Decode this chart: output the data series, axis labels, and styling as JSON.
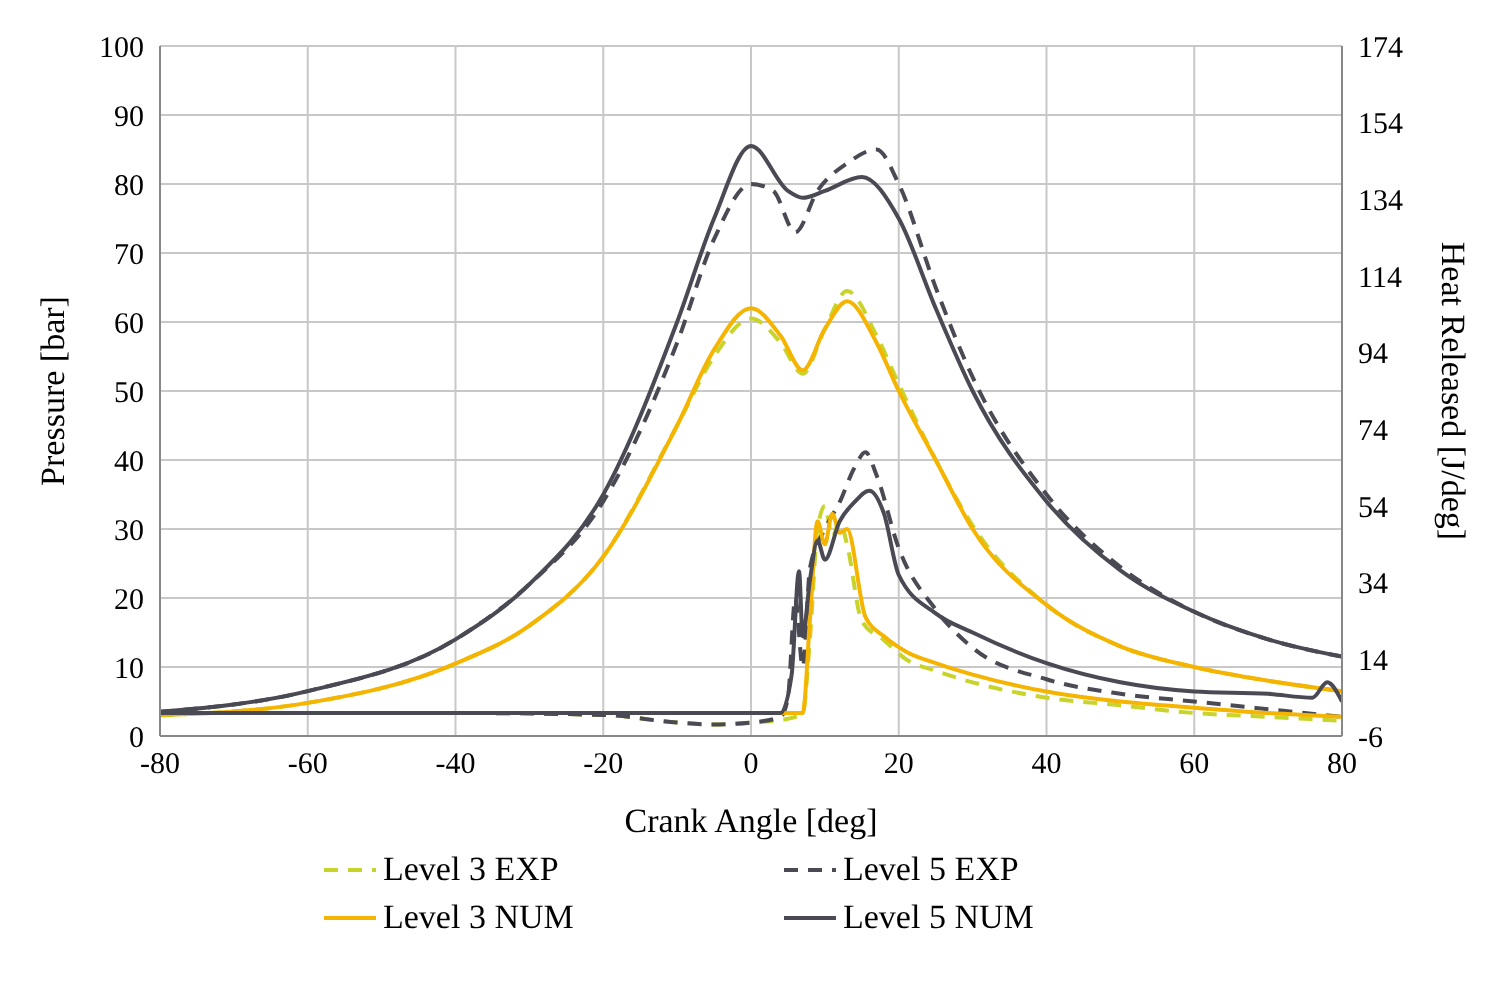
{
  "chart_data": {
    "type": "line",
    "xlabel": "Crank Angle [deg]",
    "ylabel": "Pressure [bar]",
    "y2label": "Heat Released [J/deg]",
    "xlim": [
      -80,
      80
    ],
    "xticks": [
      -80,
      -60,
      -40,
      -20,
      0,
      20,
      40,
      60,
      80
    ],
    "ylim": [
      0,
      100
    ],
    "yticks": [
      0,
      10,
      20,
      30,
      40,
      50,
      60,
      70,
      80,
      90,
      100
    ],
    "y2lim": [
      -6,
      174
    ],
    "y2ticks": [
      -6,
      14,
      34,
      54,
      74,
      94,
      114,
      134,
      154,
      174
    ],
    "grid": true,
    "legend": "bottom",
    "marker": "none",
    "series": [
      {
        "name": "Level 3 EXP",
        "color": "#c8d42a",
        "line_style": "dashed",
        "x": [
          -80,
          -60,
          -40,
          -30,
          -20,
          -10,
          -5,
          0,
          4,
          7,
          10,
          13,
          17,
          20,
          25,
          30,
          40,
          50,
          60,
          70,
          80
        ],
        "values": [
          3,
          4.8,
          10.5,
          16,
          26,
          45,
          55,
          60.5,
          57,
          52.5,
          59,
          64.5,
          58,
          51,
          40,
          30.5,
          19,
          13,
          10,
          8,
          6.5
        ]
      },
      {
        "name": "Level 5 EXP",
        "color": "#4a4a55",
        "line_style": "dashed",
        "x": [
          -80,
          -60,
          -40,
          -30,
          -20,
          -10,
          -5,
          0,
          3,
          6,
          9,
          13,
          17,
          20,
          25,
          30,
          40,
          50,
          60,
          70,
          80
        ],
        "values": [
          3.5,
          6.5,
          14,
          22,
          34,
          57,
          72,
          80,
          79,
          73,
          79,
          83,
          85,
          80,
          65,
          52,
          35,
          24.5,
          18,
          14,
          11.5
        ]
      },
      {
        "name": "Level 3 NUM",
        "color": "#f5b400",
        "line_style": "solid",
        "x": [
          -80,
          -60,
          -40,
          -30,
          -20,
          -10,
          -5,
          0,
          4,
          7,
          10,
          13,
          17,
          20,
          25,
          30,
          40,
          50,
          60,
          70,
          80
        ],
        "values": [
          3,
          4.8,
          10.5,
          16,
          26,
          45,
          56,
          62,
          58,
          53,
          59,
          63,
          57,
          50,
          40,
          30,
          19,
          13,
          10,
          8,
          6.5
        ]
      },
      {
        "name": "Level 5 NUM",
        "color": "#4a4a55",
        "line_style": "solid",
        "x": [
          -80,
          -60,
          -40,
          -30,
          -20,
          -10,
          -5,
          0,
          5,
          7,
          10,
          15,
          20,
          25,
          30,
          40,
          50,
          60,
          70,
          80
        ],
        "values": [
          3.5,
          6.5,
          14,
          22,
          35,
          60,
          75,
          85.5,
          79,
          78,
          79,
          81,
          75,
          62,
          50,
          34,
          24,
          18,
          14,
          11.5
        ]
      },
      {
        "color": "#c8d42a",
        "line_style": "dashed",
        "axis": "y2",
        "x": [
          -80,
          -40,
          -20,
          -10,
          -5,
          0,
          5,
          7,
          8,
          9,
          10,
          11,
          12,
          13,
          15,
          18,
          21,
          25,
          30,
          40,
          50,
          60,
          70,
          80
        ],
        "values": [
          0,
          0,
          -0.5,
          -2.5,
          -3,
          -2.5,
          -1.5,
          0,
          20,
          48,
          54,
          46,
          50,
          44,
          24,
          19,
          14,
          11,
          8,
          4,
          2,
          0,
          -1,
          -2
        ]
      },
      {
        "color": "#4a4a55",
        "line_style": "dashed",
        "axis": "y2",
        "x": [
          -80,
          -40,
          -20,
          -10,
          -5,
          0,
          4,
          5,
          6,
          7,
          8,
          10,
          12,
          14,
          15.5,
          17,
          20,
          25,
          30,
          40,
          50,
          60,
          70,
          80
        ],
        "values": [
          0,
          0,
          -0.5,
          -2.5,
          -3,
          -2.5,
          -1,
          4,
          30,
          12,
          38,
          48,
          55,
          64,
          68,
          62,
          43,
          27,
          17,
          8.8,
          5,
          3,
          1,
          -1
        ]
      },
      {
        "color": "#f5b400",
        "line_style": "solid",
        "axis": "y2",
        "x": [
          -80,
          -40,
          -20,
          -10,
          -5,
          0,
          5,
          7,
          8,
          9,
          10,
          11,
          12,
          13,
          15.5,
          18,
          21,
          25,
          30,
          40,
          50,
          60,
          70,
          80
        ],
        "values": [
          0,
          0,
          0,
          0,
          0,
          0,
          0,
          0,
          25,
          50,
          44,
          52,
          47,
          48,
          25,
          20,
          16,
          13,
          10,
          5.6,
          3,
          1.4,
          0,
          -1
        ]
      },
      {
        "color": "#4a4a55",
        "line_style": "solid",
        "axis": "y2",
        "x": [
          -80,
          -40,
          -20,
          -10,
          -5,
          0,
          4,
          5.5,
          6.5,
          7,
          8,
          9,
          10,
          12,
          14,
          16,
          18,
          20,
          25,
          30,
          40,
          50,
          60,
          70,
          76,
          78,
          80
        ],
        "values": [
          0,
          0,
          0,
          0,
          0,
          0,
          0,
          10,
          37,
          20,
          35,
          45,
          40,
          50,
          55,
          58,
          52,
          36,
          26,
          21,
          13,
          8,
          5.6,
          5,
          4,
          8,
          3
        ]
      }
    ]
  }
}
